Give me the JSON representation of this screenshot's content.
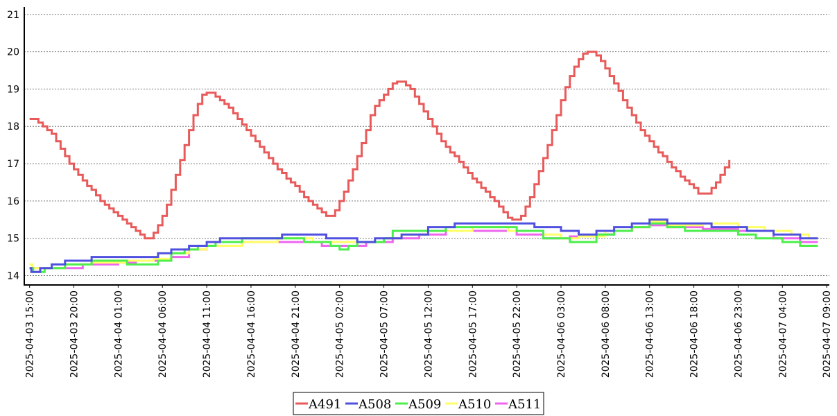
{
  "chart_data": {
    "type": "line",
    "step": true,
    "grid": true,
    "legend_position": "bottom-center",
    "ylim": [
      13.75,
      21.2
    ],
    "y_ticks": [
      "14",
      "15",
      "16",
      "17",
      "18",
      "19",
      "20",
      "21"
    ],
    "x_range_hours": [
      -0.6,
      90.3
    ],
    "x_tick_labels": [
      "2025-04-03 15:00",
      "2025-04-03 20:00",
      "2025-04-04 01:00",
      "2025-04-04 06:00",
      "2025-04-04 11:00",
      "2025-04-04 16:00",
      "2025-04-04 21:00",
      "2025-04-05 02:00",
      "2025-04-05 07:00",
      "2025-04-05 12:00",
      "2025-04-05 17:00",
      "2025-04-05 22:00",
      "2025-04-06 03:00",
      "2025-04-06 08:00",
      "2025-04-06 13:00",
      "2025-04-06 18:00",
      "2025-04-06 23:00",
      "2025-04-07 04:00",
      "2025-04-07 09:00"
    ],
    "series": [
      {
        "name": "A491",
        "color": "#e85a5a",
        "points": [
          [
            0,
            18.2
          ],
          [
            0.5,
            18.2
          ],
          [
            1,
            18.1
          ],
          [
            1.5,
            18.0
          ],
          [
            2,
            17.9
          ],
          [
            2.5,
            17.8
          ],
          [
            3,
            17.6
          ],
          [
            3.5,
            17.4
          ],
          [
            4,
            17.2
          ],
          [
            4.5,
            17.0
          ],
          [
            5,
            16.85
          ],
          [
            5.5,
            16.7
          ],
          [
            6,
            16.55
          ],
          [
            6.5,
            16.4
          ],
          [
            7,
            16.3
          ],
          [
            7.5,
            16.15
          ],
          [
            8,
            16.0
          ],
          [
            8.5,
            15.9
          ],
          [
            9,
            15.8
          ],
          [
            9.5,
            15.7
          ],
          [
            10,
            15.6
          ],
          [
            10.5,
            15.5
          ],
          [
            11,
            15.4
          ],
          [
            11.5,
            15.3
          ],
          [
            12,
            15.2
          ],
          [
            12.5,
            15.1
          ],
          [
            13,
            15.0
          ],
          [
            13.5,
            15.0
          ],
          [
            14,
            15.15
          ],
          [
            14.5,
            15.35
          ],
          [
            15,
            15.6
          ],
          [
            15.5,
            15.9
          ],
          [
            16,
            16.3
          ],
          [
            16.5,
            16.7
          ],
          [
            17,
            17.1
          ],
          [
            17.5,
            17.5
          ],
          [
            18,
            17.9
          ],
          [
            18.5,
            18.3
          ],
          [
            19,
            18.6
          ],
          [
            19.5,
            18.85
          ],
          [
            20,
            18.9
          ],
          [
            20.5,
            18.9
          ],
          [
            21,
            18.8
          ],
          [
            21.5,
            18.7
          ],
          [
            22,
            18.6
          ],
          [
            22.5,
            18.5
          ],
          [
            23,
            18.35
          ],
          [
            23.5,
            18.2
          ],
          [
            24,
            18.05
          ],
          [
            24.5,
            17.9
          ],
          [
            25,
            17.75
          ],
          [
            25.5,
            17.6
          ],
          [
            26,
            17.45
          ],
          [
            26.5,
            17.3
          ],
          [
            27,
            17.15
          ],
          [
            27.5,
            17.0
          ],
          [
            28,
            16.85
          ],
          [
            28.5,
            16.75
          ],
          [
            29,
            16.6
          ],
          [
            29.5,
            16.5
          ],
          [
            30,
            16.4
          ],
          [
            30.5,
            16.25
          ],
          [
            31,
            16.1
          ],
          [
            31.5,
            16.0
          ],
          [
            32,
            15.9
          ],
          [
            32.5,
            15.8
          ],
          [
            33,
            15.7
          ],
          [
            33.5,
            15.6
          ],
          [
            34,
            15.6
          ],
          [
            34.5,
            15.75
          ],
          [
            35,
            16.0
          ],
          [
            35.5,
            16.25
          ],
          [
            36,
            16.55
          ],
          [
            36.5,
            16.85
          ],
          [
            37,
            17.2
          ],
          [
            37.5,
            17.55
          ],
          [
            38,
            17.9
          ],
          [
            38.5,
            18.3
          ],
          [
            39,
            18.55
          ],
          [
            39.5,
            18.7
          ],
          [
            40,
            18.85
          ],
          [
            40.5,
            19.0
          ],
          [
            41,
            19.15
          ],
          [
            41.5,
            19.2
          ],
          [
            42,
            19.2
          ],
          [
            42.5,
            19.1
          ],
          [
            43,
            19.0
          ],
          [
            43.5,
            18.8
          ],
          [
            44,
            18.6
          ],
          [
            44.5,
            18.4
          ],
          [
            45,
            18.2
          ],
          [
            45.5,
            18.0
          ],
          [
            46,
            17.8
          ],
          [
            46.5,
            17.6
          ],
          [
            47,
            17.45
          ],
          [
            47.5,
            17.3
          ],
          [
            48,
            17.2
          ],
          [
            48.5,
            17.05
          ],
          [
            49,
            16.9
          ],
          [
            49.5,
            16.75
          ],
          [
            50,
            16.6
          ],
          [
            50.5,
            16.5
          ],
          [
            51,
            16.35
          ],
          [
            51.5,
            16.25
          ],
          [
            52,
            16.1
          ],
          [
            52.5,
            16.0
          ],
          [
            53,
            15.85
          ],
          [
            53.5,
            15.7
          ],
          [
            54,
            15.55
          ],
          [
            54.5,
            15.5
          ],
          [
            55,
            15.5
          ],
          [
            55.5,
            15.6
          ],
          [
            56,
            15.85
          ],
          [
            56.5,
            16.1
          ],
          [
            57,
            16.45
          ],
          [
            57.5,
            16.8
          ],
          [
            58,
            17.15
          ],
          [
            58.5,
            17.5
          ],
          [
            59,
            17.9
          ],
          [
            59.5,
            18.3
          ],
          [
            60,
            18.7
          ],
          [
            60.5,
            19.05
          ],
          [
            61,
            19.35
          ],
          [
            61.5,
            19.6
          ],
          [
            62,
            19.8
          ],
          [
            62.5,
            19.95
          ],
          [
            63,
            20.0
          ],
          [
            63.5,
            20.0
          ],
          [
            64,
            19.9
          ],
          [
            64.5,
            19.75
          ],
          [
            65,
            19.55
          ],
          [
            65.5,
            19.35
          ],
          [
            66,
            19.15
          ],
          [
            66.5,
            18.95
          ],
          [
            67,
            18.7
          ],
          [
            67.5,
            18.5
          ],
          [
            68,
            18.3
          ],
          [
            68.5,
            18.1
          ],
          [
            69,
            17.9
          ],
          [
            69.5,
            17.75
          ],
          [
            70,
            17.6
          ],
          [
            70.5,
            17.45
          ],
          [
            71,
            17.3
          ],
          [
            71.5,
            17.2
          ],
          [
            72,
            17.05
          ],
          [
            72.5,
            16.9
          ],
          [
            73,
            16.8
          ],
          [
            73.5,
            16.65
          ],
          [
            74,
            16.55
          ],
          [
            74.5,
            16.45
          ],
          [
            75,
            16.35
          ],
          [
            75.5,
            16.2
          ],
          [
            76,
            16.2
          ],
          [
            76.5,
            16.2
          ],
          [
            77,
            16.35
          ],
          [
            77.5,
            16.5
          ],
          [
            78,
            16.7
          ],
          [
            78.5,
            16.9
          ],
          [
            79,
            17.1
          ]
        ]
      },
      {
        "name": "A508",
        "color": "#5050e0",
        "points": [
          [
            0,
            14.2
          ],
          [
            0.2,
            14.1
          ],
          [
            1,
            14.1
          ],
          [
            1.2,
            14.2
          ],
          [
            2.5,
            14.3
          ],
          [
            4,
            14.4
          ],
          [
            7,
            14.5
          ],
          [
            14.5,
            14.6
          ],
          [
            16,
            14.7
          ],
          [
            18,
            14.8
          ],
          [
            20,
            14.9
          ],
          [
            21.5,
            15.0
          ],
          [
            28.5,
            15.1
          ],
          [
            33.5,
            15.0
          ],
          [
            37,
            14.9
          ],
          [
            39,
            15.0
          ],
          [
            42,
            15.1
          ],
          [
            45,
            15.3
          ],
          [
            48,
            15.4
          ],
          [
            57,
            15.3
          ],
          [
            60,
            15.2
          ],
          [
            62,
            15.1
          ],
          [
            64,
            15.2
          ],
          [
            66,
            15.3
          ],
          [
            68,
            15.4
          ],
          [
            70,
            15.5
          ],
          [
            72,
            15.4
          ],
          [
            77,
            15.3
          ],
          [
            81,
            15.2
          ],
          [
            84,
            15.1
          ],
          [
            87,
            15.0
          ],
          [
            89,
            15.0
          ]
        ]
      },
      {
        "name": "A509",
        "color": "#4cee4c",
        "points": [
          [
            0,
            14.2
          ],
          [
            0.4,
            14.1
          ],
          [
            1.5,
            14.1
          ],
          [
            1.7,
            14.2
          ],
          [
            4,
            14.3
          ],
          [
            7,
            14.4
          ],
          [
            11,
            14.3
          ],
          [
            14.5,
            14.4
          ],
          [
            16,
            14.6
          ],
          [
            17.5,
            14.7
          ],
          [
            19,
            14.8
          ],
          [
            21,
            14.9
          ],
          [
            24,
            15.0
          ],
          [
            28.5,
            15.0
          ],
          [
            31,
            14.9
          ],
          [
            34,
            14.8
          ],
          [
            35,
            14.7
          ],
          [
            36,
            14.8
          ],
          [
            37,
            14.9
          ],
          [
            40,
            15.0
          ],
          [
            41,
            15.2
          ],
          [
            44,
            15.2
          ],
          [
            47,
            15.3
          ],
          [
            55,
            15.2
          ],
          [
            58,
            15.0
          ],
          [
            61,
            14.9
          ],
          [
            64,
            15.1
          ],
          [
            66,
            15.2
          ],
          [
            68,
            15.3
          ],
          [
            70,
            15.4
          ],
          [
            72,
            15.3
          ],
          [
            74,
            15.2
          ],
          [
            78,
            15.2
          ],
          [
            80,
            15.1
          ],
          [
            82,
            15.0
          ],
          [
            85,
            14.9
          ],
          [
            87,
            14.8
          ],
          [
            89,
            14.8
          ]
        ]
      },
      {
        "name": "A510",
        "color": "#ffff66",
        "points": [
          [
            0,
            14.3
          ],
          [
            0.3,
            14.2
          ],
          [
            2,
            14.2
          ],
          [
            4,
            14.3
          ],
          [
            7,
            14.35
          ],
          [
            11,
            14.4
          ],
          [
            14,
            14.45
          ],
          [
            16,
            14.6
          ],
          [
            18,
            14.7
          ],
          [
            20,
            14.8
          ],
          [
            24,
            14.9
          ],
          [
            28,
            15.0
          ],
          [
            32,
            14.9
          ],
          [
            35,
            14.9
          ],
          [
            37,
            14.9
          ],
          [
            40,
            15.0
          ],
          [
            42,
            15.1
          ],
          [
            45,
            15.2
          ],
          [
            50,
            15.3
          ],
          [
            54,
            15.2
          ],
          [
            58,
            15.1
          ],
          [
            60,
            15.0
          ],
          [
            62,
            15.05
          ],
          [
            65,
            15.2
          ],
          [
            68,
            15.3
          ],
          [
            70,
            15.45
          ],
          [
            72,
            15.35
          ],
          [
            76,
            15.4
          ],
          [
            80,
            15.3
          ],
          [
            83,
            15.2
          ],
          [
            86,
            15.1
          ],
          [
            88,
            15.0
          ],
          [
            89,
            15.0
          ]
        ]
      },
      {
        "name": "A511",
        "color": "#ee66ee",
        "points": [
          [
            0,
            14.2
          ],
          [
            2,
            14.2
          ],
          [
            4,
            14.2
          ],
          [
            6,
            14.3
          ],
          [
            10,
            14.35
          ],
          [
            12,
            14.4
          ],
          [
            14,
            14.4
          ],
          [
            16,
            14.5
          ],
          [
            18,
            14.7
          ],
          [
            20,
            14.8
          ],
          [
            22,
            14.8
          ],
          [
            24,
            14.9
          ],
          [
            28,
            14.9
          ],
          [
            33,
            14.8
          ],
          [
            35,
            14.8
          ],
          [
            38,
            14.9
          ],
          [
            41,
            15.0
          ],
          [
            44,
            15.1
          ],
          [
            47,
            15.2
          ],
          [
            55,
            15.1
          ],
          [
            58,
            15.0
          ],
          [
            61,
            15.05
          ],
          [
            64,
            15.1
          ],
          [
            66,
            15.2
          ],
          [
            68,
            15.3
          ],
          [
            70,
            15.35
          ],
          [
            72,
            15.3
          ],
          [
            74,
            15.3
          ],
          [
            76,
            15.25
          ],
          [
            80,
            15.2
          ],
          [
            84,
            15.0
          ],
          [
            87,
            14.9
          ],
          [
            89,
            14.9
          ]
        ]
      }
    ]
  }
}
